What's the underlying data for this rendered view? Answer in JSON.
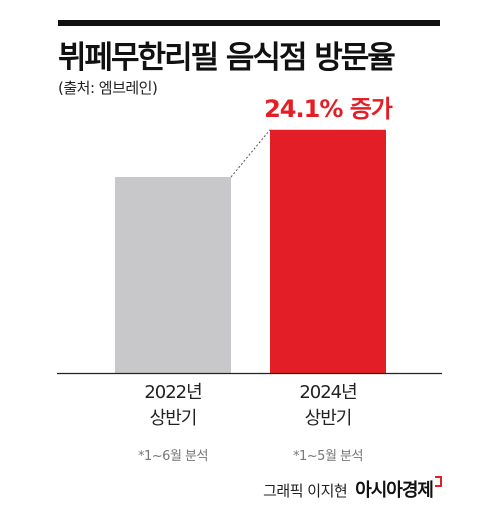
{
  "title": "뷔페무한리필 음식점 방문율",
  "source": "(출처: 엠브레인)",
  "chart_data": {
    "type": "bar",
    "categories": [
      "2022년 상반기",
      "2024년 상반기"
    ],
    "category_lines": [
      [
        "2022년",
        "상반기"
      ],
      [
        "2024년",
        "상반기"
      ]
    ],
    "notes": [
      "*1~6월 분석",
      "*1~5월 분석"
    ],
    "values": [
      100,
      124.1
    ],
    "ylim": [
      0,
      125
    ],
    "colors": [
      "#c8c8ca",
      "#e41e26"
    ],
    "annotation": "24.1% 증가",
    "annotation_color": "#e41e26",
    "grid": false,
    "legend": "none"
  },
  "footer": {
    "credit": "그래픽 이지현",
    "publisher": "아시아경제"
  }
}
